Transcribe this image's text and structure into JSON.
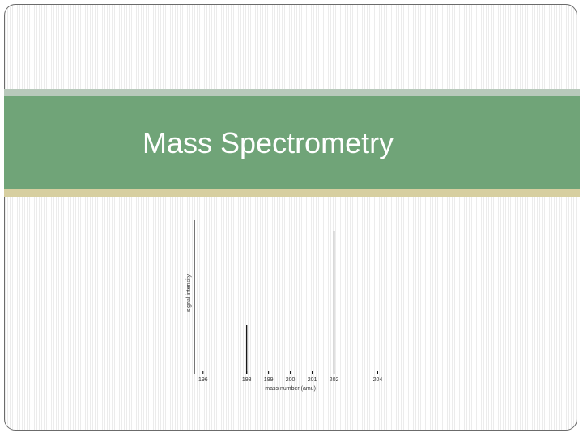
{
  "slide": {
    "title": "Mass Spectrometry"
  },
  "colors": {
    "band": "#70a478",
    "band_top": "#b8c9bb",
    "band_bottom": "#d7cfa0",
    "peaks": "#000000"
  },
  "chart_data": {
    "type": "bar",
    "title": "",
    "xlabel": "mass number (amu)",
    "ylabel": "signal intensity",
    "x_ticks": [
      "196",
      "198",
      "199",
      "200",
      "201",
      "202",
      "204"
    ],
    "xlim": [
      195.6,
      204.8
    ],
    "ylim": [
      0,
      1
    ],
    "grid": false,
    "series": [
      {
        "x": [
          198,
          202
        ],
        "values": [
          0.32,
          0.93
        ]
      }
    ]
  }
}
